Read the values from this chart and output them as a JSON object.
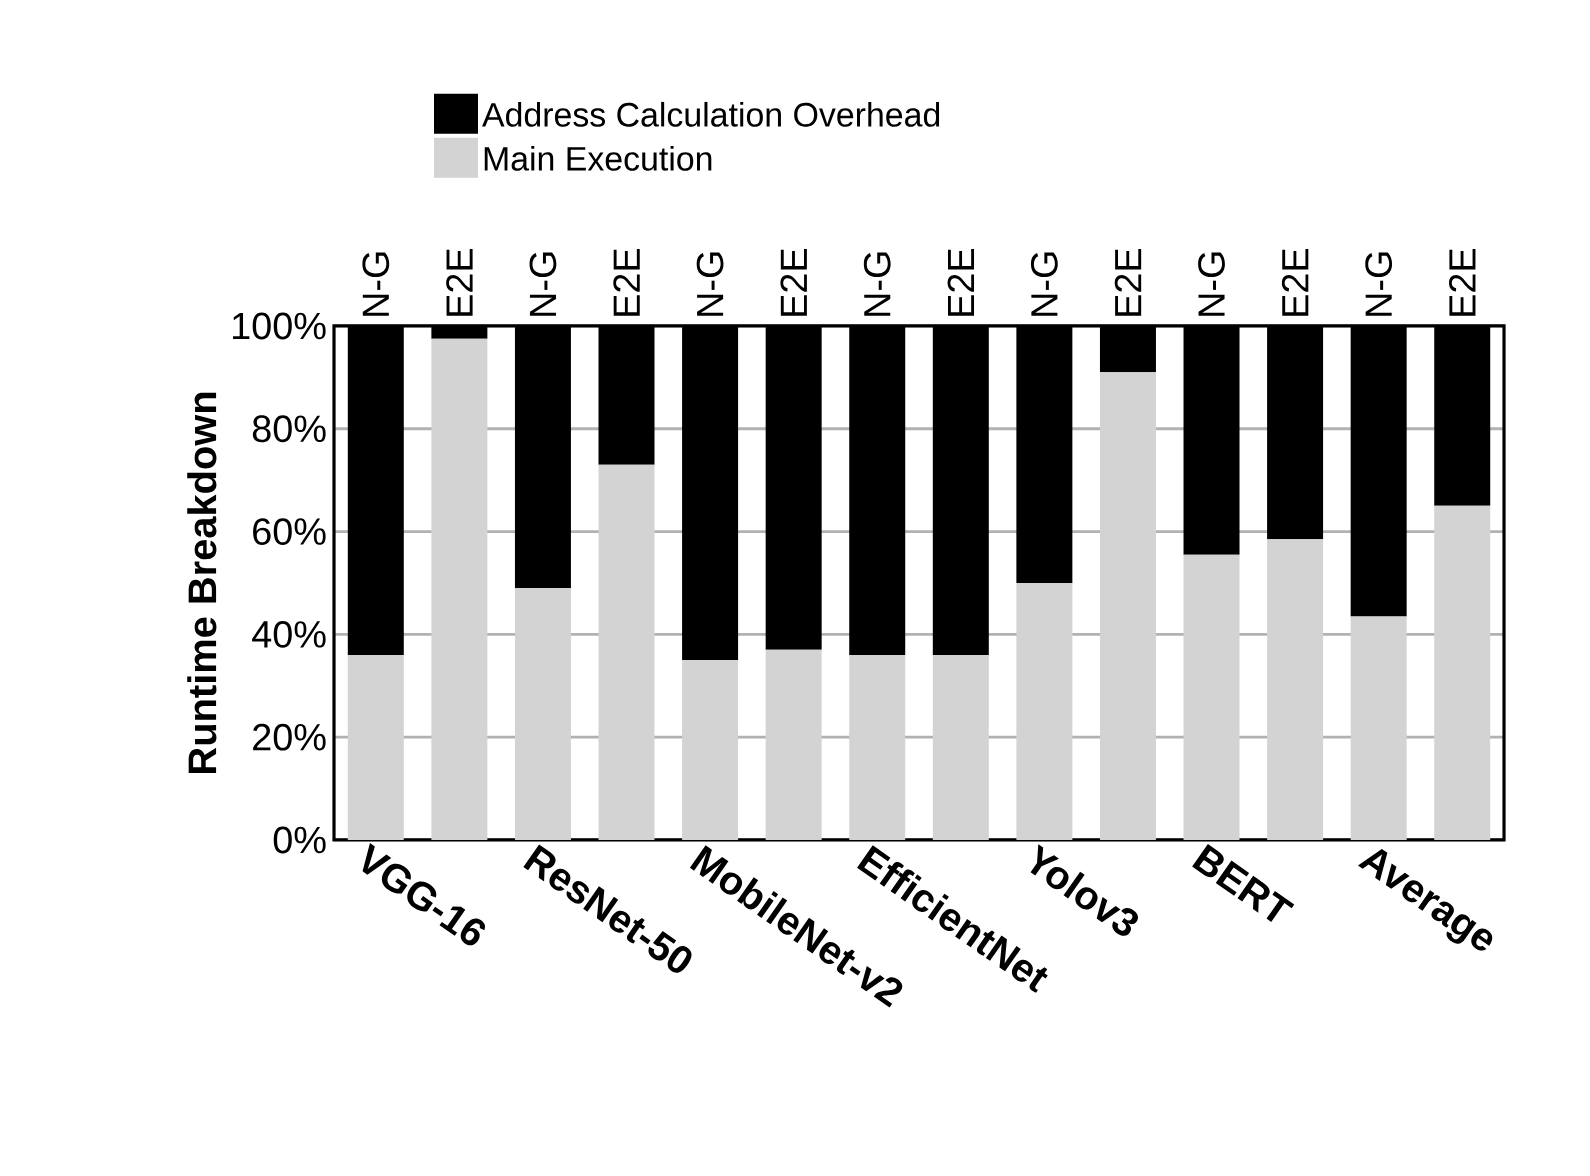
{
  "chart_data": {
    "type": "bar",
    "stacked": true,
    "ylabel": "Runtime Breakdown",
    "categories": [
      "N-G",
      "E2E",
      "N-G",
      "E2E",
      "N-G",
      "E2E",
      "N-G",
      "E2E",
      "N-G",
      "E2E",
      "N-G",
      "E2E",
      "N-G",
      "E2E"
    ],
    "annotations": [
      "VGG-16",
      "ResNet-50",
      "MobileNet-v2",
      "EfficientNet",
      "Yolov3",
      "BERT",
      "Average"
    ],
    "series": [
      {
        "name": "Main Execution",
        "color": "#d3d3d3",
        "values": [
          36,
          97.5,
          49,
          73,
          35,
          37,
          36,
          36,
          50,
          91,
          55.5,
          58.5,
          43.5,
          65
        ]
      },
      {
        "name": "Address Calculation Overhead",
        "color": "#000000",
        "values": [
          64,
          2.5,
          51,
          27,
          65,
          63,
          64,
          64,
          50,
          9,
          44.5,
          41.5,
          56.5,
          35
        ]
      }
    ],
    "ylim": [
      0,
      100
    ],
    "yticks": [
      {
        "value": 0,
        "label": "0%"
      },
      {
        "value": 20,
        "label": "20%"
      },
      {
        "value": 40,
        "label": "40%"
      },
      {
        "value": 60,
        "label": "60%"
      },
      {
        "value": 80,
        "label": "80%"
      },
      {
        "value": 100,
        "label": "100%"
      }
    ],
    "grid": "y",
    "legend": "top"
  }
}
